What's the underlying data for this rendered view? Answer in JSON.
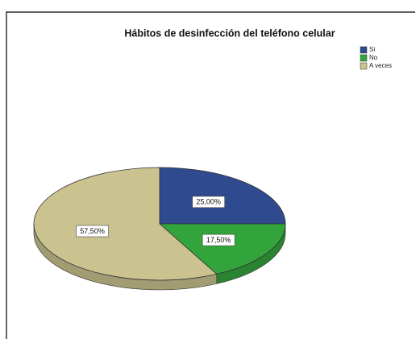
{
  "chart_data": {
    "type": "pie",
    "title": "Hábitos de desinfección del teléfono celular",
    "categories": [
      "Si",
      "No",
      "A veces"
    ],
    "values": [
      25,
      17.5,
      57.5
    ],
    "value_labels": [
      "25,00%",
      "17,50%",
      "57,50%"
    ],
    "colors": [
      "#2f4a8e",
      "#33a43c",
      "#cbc38f"
    ],
    "legend": "top-right"
  }
}
